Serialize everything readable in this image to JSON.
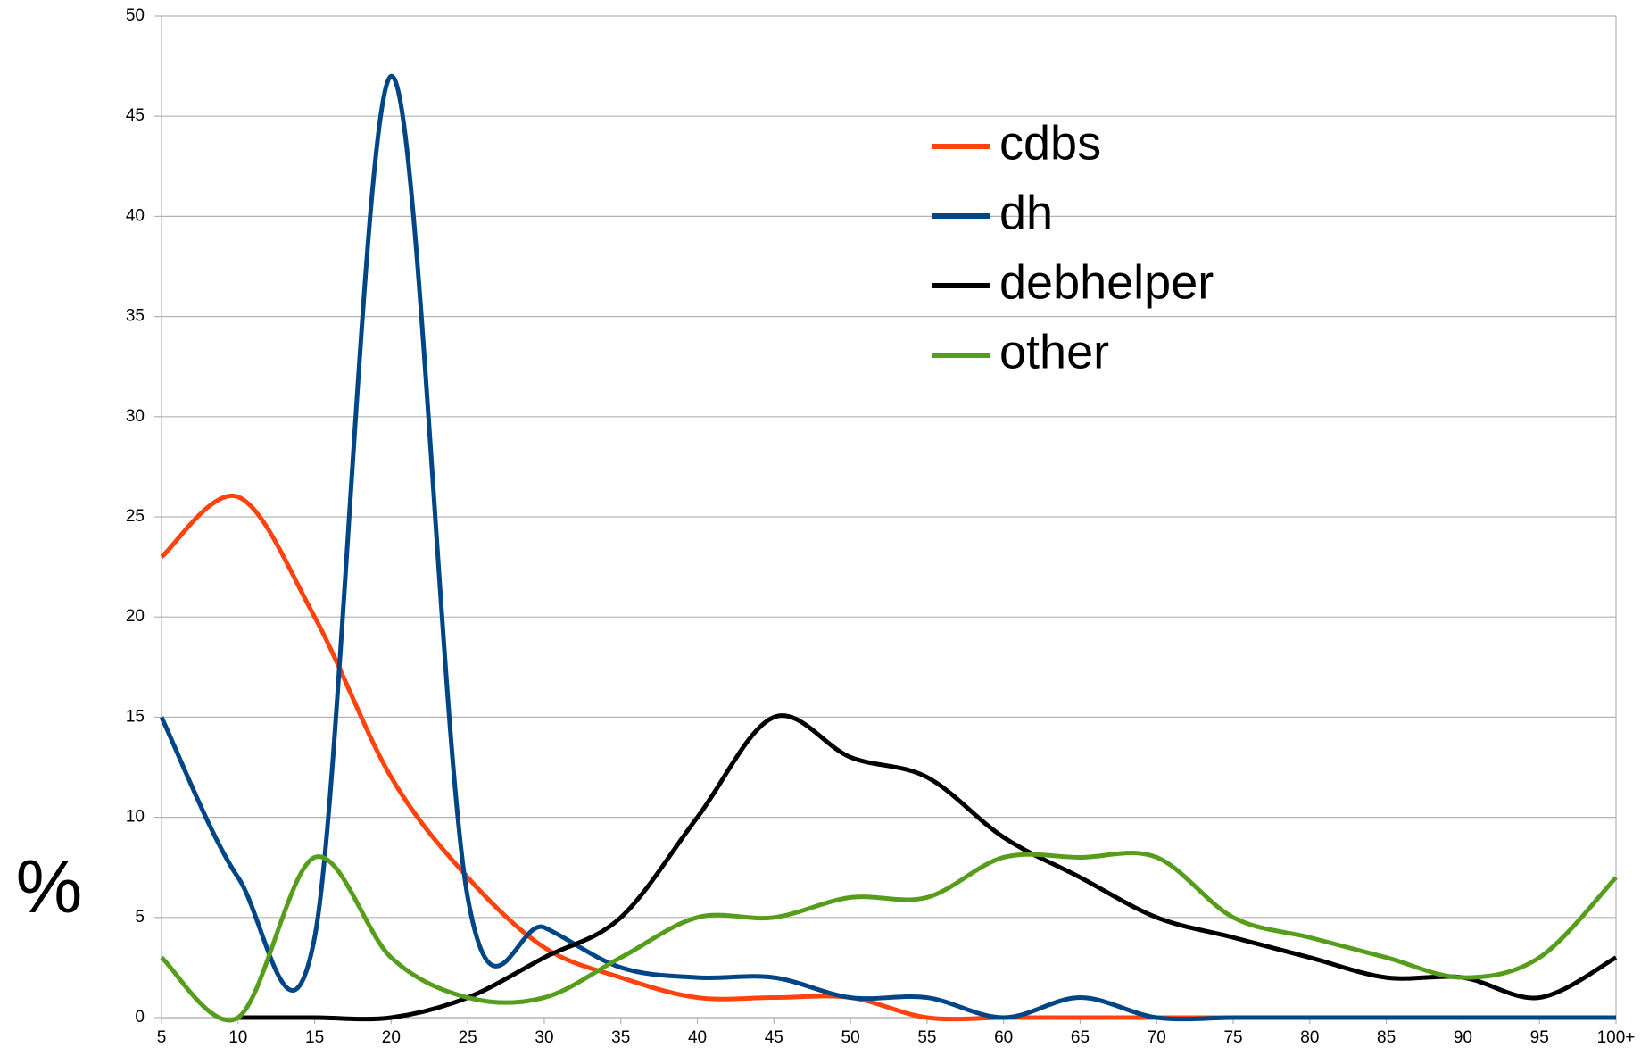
{
  "chart_data": {
    "type": "line",
    "y_label": "%",
    "categories": [
      "5",
      "10",
      "15",
      "20",
      "25",
      "30",
      "35",
      "40",
      "45",
      "50",
      "55",
      "60",
      "65",
      "70",
      "75",
      "80",
      "85",
      "90",
      "95",
      "100+"
    ],
    "series": [
      {
        "name": "cdbs",
        "color": "#ff420e",
        "values": [
          23,
          26,
          20,
          12,
          7,
          3.5,
          2,
          1,
          1,
          1,
          0,
          0,
          0,
          0,
          0,
          0,
          0,
          0,
          0,
          0
        ]
      },
      {
        "name": "dh",
        "color": "#004586",
        "values": [
          15,
          7,
          4,
          47,
          6,
          4.5,
          2.5,
          2,
          2,
          1,
          1,
          0,
          1,
          0,
          0,
          0,
          0,
          0,
          0,
          0
        ]
      },
      {
        "name": "debhelper",
        "color": "#000000",
        "values": [
          null,
          0,
          0,
          0,
          1,
          3,
          5,
          10,
          15,
          13,
          12,
          9,
          7,
          5,
          4,
          3,
          2,
          2,
          1,
          3
        ]
      },
      {
        "name": "other",
        "color": "#579d1c",
        "values": [
          3,
          0,
          8,
          3,
          1,
          1,
          3,
          5,
          5,
          6,
          6,
          8,
          8,
          8,
          5,
          4,
          3,
          2,
          3,
          7
        ]
      }
    ],
    "ylim": [
      0,
      50
    ],
    "yticks": [
      0,
      5,
      10,
      15,
      20,
      25,
      30,
      35,
      40,
      45,
      50
    ],
    "grid": true,
    "legend": "upper right"
  }
}
